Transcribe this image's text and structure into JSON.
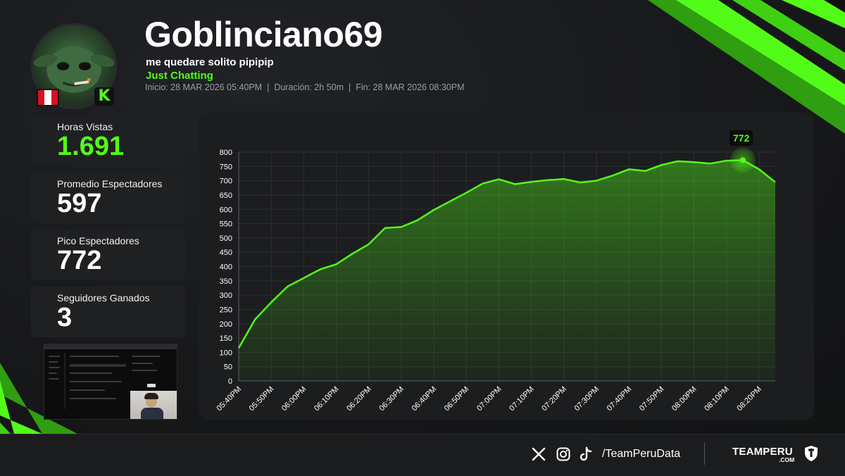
{
  "streamer": {
    "name": "Goblinciano69",
    "stream_title": "me quedare solito pipipip",
    "category": "Just Chatting",
    "meta": {
      "start": "Inicio: 28 MAR 2026 05:40PM",
      "duration": "Duración: 2h 50m",
      "end": "Fin: 28 MAR 2026 08:30PM",
      "separator": "|"
    },
    "flag": "peru-flag",
    "platform": "kick-icon",
    "platform_letter": "K"
  },
  "stats": [
    {
      "label": "Horas Vistas",
      "value": "1.691",
      "highlight": true
    },
    {
      "label": "Promedio Espectadores",
      "value": "597",
      "highlight": false
    },
    {
      "label": "Pico Espectadores",
      "value": "772",
      "highlight": false
    },
    {
      "label": "Seguidores Ganados",
      "value": "3",
      "highlight": false
    }
  ],
  "chart_data": {
    "type": "area",
    "title": "",
    "xlabel": "",
    "ylabel": "",
    "ylim": [
      0,
      800
    ],
    "y_ticks": [
      0,
      50,
      100,
      150,
      200,
      250,
      300,
      350,
      400,
      450,
      500,
      550,
      600,
      650,
      700,
      750,
      800
    ],
    "x_ticks": [
      "05:40PM",
      "05:50PM",
      "06:00PM",
      "06:10PM",
      "06:20PM",
      "06:30PM",
      "06:40PM",
      "06:50PM",
      "07:00PM",
      "07:10PM",
      "07:20PM",
      "07:30PM",
      "07:40PM",
      "07:50PM",
      "08:00PM",
      "08:10PM",
      "08:20PM"
    ],
    "x_minutes": [
      0,
      5,
      10,
      15,
      20,
      25,
      30,
      35,
      40,
      45,
      50,
      55,
      60,
      65,
      70,
      75,
      80,
      85,
      90,
      95,
      100,
      105,
      110,
      115,
      120,
      125,
      130,
      135,
      140,
      145,
      150,
      155,
      160,
      165
    ],
    "values": [
      115,
      215,
      275,
      330,
      360,
      390,
      408,
      445,
      478,
      535,
      538,
      562,
      598,
      628,
      658,
      690,
      705,
      688,
      696,
      702,
      706,
      694,
      700,
      718,
      740,
      734,
      755,
      768,
      765,
      760,
      770,
      772,
      740,
      695
    ],
    "peak": {
      "minute": 155,
      "value": 772,
      "label": "772"
    },
    "grid": true,
    "line_color": "#53fc18"
  },
  "footer": {
    "handle": "/TeamPeruData",
    "brand": "TEAMPERU",
    "brand_sub": ".COM",
    "icons": [
      "x-icon",
      "instagram-icon",
      "tiktok-icon"
    ]
  },
  "colors": {
    "accent": "#53fc18",
    "background": "#151618",
    "card": "#1f2022"
  }
}
